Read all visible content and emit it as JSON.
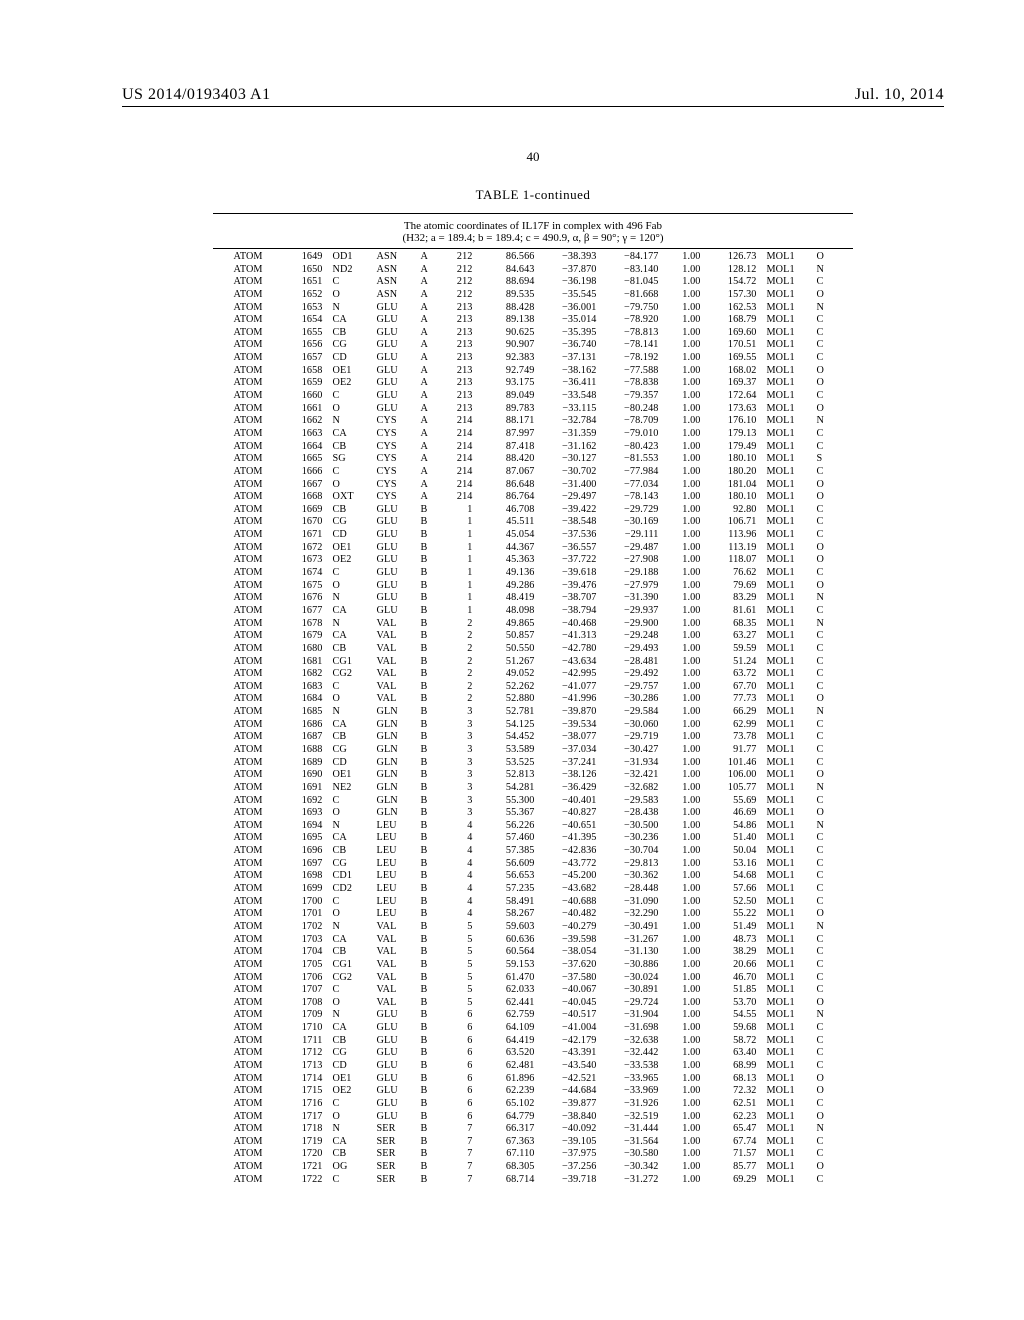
{
  "header": {
    "publication_no": "US 2014/0193403 A1",
    "publication_date": "Jul. 10, 2014",
    "page_number": "40"
  },
  "table": {
    "title": "TABLE 1-continued",
    "subtitle": "The atomic coordinates of IL17F in complex with 496 Fab\n(H32; a = 189.4; b = 189.4; c = 490.9, α, β = 90°; γ = 120°)",
    "cols": [
      "rec",
      "ser",
      "at",
      "res",
      "ch",
      "resn",
      "x",
      "y",
      "z",
      "oc",
      "bf",
      "seg",
      "el"
    ],
    "rows": [
      [
        "ATOM",
        "1649",
        "OD1",
        "ASN",
        "A",
        "212",
        "86.566",
        "−38.393",
        "−84.177",
        "1.00",
        "126.73",
        "MOL1",
        "O"
      ],
      [
        "ATOM",
        "1650",
        "ND2",
        "ASN",
        "A",
        "212",
        "84.643",
        "−37.870",
        "−83.140",
        "1.00",
        "128.12",
        "MOL1",
        "N"
      ],
      [
        "ATOM",
        "1651",
        "C",
        "ASN",
        "A",
        "212",
        "88.694",
        "−36.198",
        "−81.045",
        "1.00",
        "154.72",
        "MOL1",
        "C"
      ],
      [
        "ATOM",
        "1652",
        "O",
        "ASN",
        "A",
        "212",
        "89.535",
        "−35.545",
        "−81.668",
        "1.00",
        "157.30",
        "MOL1",
        "O"
      ],
      [
        "ATOM",
        "1653",
        "N",
        "GLU",
        "A",
        "213",
        "88.428",
        "−36.001",
        "−79.750",
        "1.00",
        "162.53",
        "MOL1",
        "N"
      ],
      [
        "ATOM",
        "1654",
        "CA",
        "GLU",
        "A",
        "213",
        "89.138",
        "−35.014",
        "−78.920",
        "1.00",
        "168.79",
        "MOL1",
        "C"
      ],
      [
        "ATOM",
        "1655",
        "CB",
        "GLU",
        "A",
        "213",
        "90.625",
        "−35.395",
        "−78.813",
        "1.00",
        "169.60",
        "MOL1",
        "C"
      ],
      [
        "ATOM",
        "1656",
        "CG",
        "GLU",
        "A",
        "213",
        "90.907",
        "−36.740",
        "−78.141",
        "1.00",
        "170.51",
        "MOL1",
        "C"
      ],
      [
        "ATOM",
        "1657",
        "CD",
        "GLU",
        "A",
        "213",
        "92.383",
        "−37.131",
        "−78.192",
        "1.00",
        "169.55",
        "MOL1",
        "C"
      ],
      [
        "ATOM",
        "1658",
        "OE1",
        "GLU",
        "A",
        "213",
        "92.749",
        "−38.162",
        "−77.588",
        "1.00",
        "168.02",
        "MOL1",
        "O"
      ],
      [
        "ATOM",
        "1659",
        "OE2",
        "GLU",
        "A",
        "213",
        "93.175",
        "−36.411",
        "−78.838",
        "1.00",
        "169.37",
        "MOL1",
        "O"
      ],
      [
        "ATOM",
        "1660",
        "C",
        "GLU",
        "A",
        "213",
        "89.049",
        "−33.548",
        "−79.357",
        "1.00",
        "172.64",
        "MOL1",
        "C"
      ],
      [
        "ATOM",
        "1661",
        "O",
        "GLU",
        "A",
        "213",
        "89.783",
        "−33.115",
        "−80.248",
        "1.00",
        "173.63",
        "MOL1",
        "O"
      ],
      [
        "ATOM",
        "1662",
        "N",
        "CYS",
        "A",
        "214",
        "88.171",
        "−32.784",
        "−78.709",
        "1.00",
        "176.10",
        "MOL1",
        "N"
      ],
      [
        "ATOM",
        "1663",
        "CA",
        "CYS",
        "A",
        "214",
        "87.997",
        "−31.359",
        "−79.010",
        "1.00",
        "179.13",
        "MOL1",
        "C"
      ],
      [
        "ATOM",
        "1664",
        "CB",
        "CYS",
        "A",
        "214",
        "87.418",
        "−31.162",
        "−80.423",
        "1.00",
        "179.49",
        "MOL1",
        "C"
      ],
      [
        "ATOM",
        "1665",
        "SG",
        "CYS",
        "A",
        "214",
        "88.420",
        "−30.127",
        "−81.553",
        "1.00",
        "180.10",
        "MOL1",
        "S"
      ],
      [
        "ATOM",
        "1666",
        "C",
        "CYS",
        "A",
        "214",
        "87.067",
        "−30.702",
        "−77.984",
        "1.00",
        "180.20",
        "MOL1",
        "C"
      ],
      [
        "ATOM",
        "1667",
        "O",
        "CYS",
        "A",
        "214",
        "86.648",
        "−31.400",
        "−77.034",
        "1.00",
        "181.04",
        "MOL1",
        "O"
      ],
      [
        "ATOM",
        "1668",
        "OXT",
        "CYS",
        "A",
        "214",
        "86.764",
        "−29.497",
        "−78.143",
        "1.00",
        "180.10",
        "MOL1",
        "O"
      ],
      [
        "ATOM",
        "1669",
        "CB",
        "GLU",
        "B",
        "1",
        "46.708",
        "−39.422",
        "−29.729",
        "1.00",
        "92.80",
        "MOL1",
        "C"
      ],
      [
        "ATOM",
        "1670",
        "CG",
        "GLU",
        "B",
        "1",
        "45.511",
        "−38.548",
        "−30.169",
        "1.00",
        "106.71",
        "MOL1",
        "C"
      ],
      [
        "ATOM",
        "1671",
        "CD",
        "GLU",
        "B",
        "1",
        "45.054",
        "−37.536",
        "−29.111",
        "1.00",
        "113.96",
        "MOL1",
        "C"
      ],
      [
        "ATOM",
        "1672",
        "OE1",
        "GLU",
        "B",
        "1",
        "44.367",
        "−36.557",
        "−29.487",
        "1.00",
        "113.19",
        "MOL1",
        "O"
      ],
      [
        "ATOM",
        "1673",
        "OE2",
        "GLU",
        "B",
        "1",
        "45.363",
        "−37.722",
        "−27.908",
        "1.00",
        "118.07",
        "MOL1",
        "O"
      ],
      [
        "ATOM",
        "1674",
        "C",
        "GLU",
        "B",
        "1",
        "49.136",
        "−39.618",
        "−29.188",
        "1.00",
        "76.62",
        "MOL1",
        "C"
      ],
      [
        "ATOM",
        "1675",
        "O",
        "GLU",
        "B",
        "1",
        "49.286",
        "−39.476",
        "−27.979",
        "1.00",
        "79.69",
        "MOL1",
        "O"
      ],
      [
        "ATOM",
        "1676",
        "N",
        "GLU",
        "B",
        "1",
        "48.419",
        "−38.707",
        "−31.390",
        "1.00",
        "83.29",
        "MOL1",
        "N"
      ],
      [
        "ATOM",
        "1677",
        "CA",
        "GLU",
        "B",
        "1",
        "48.098",
        "−38.794",
        "−29.937",
        "1.00",
        "81.61",
        "MOL1",
        "C"
      ],
      [
        "ATOM",
        "1678",
        "N",
        "VAL",
        "B",
        "2",
        "49.865",
        "−40.468",
        "−29.900",
        "1.00",
        "68.35",
        "MOL1",
        "N"
      ],
      [
        "ATOM",
        "1679",
        "CA",
        "VAL",
        "B",
        "2",
        "50.857",
        "−41.313",
        "−29.248",
        "1.00",
        "63.27",
        "MOL1",
        "C"
      ],
      [
        "ATOM",
        "1680",
        "CB",
        "VAL",
        "B",
        "2",
        "50.550",
        "−42.780",
        "−29.493",
        "1.00",
        "59.59",
        "MOL1",
        "C"
      ],
      [
        "ATOM",
        "1681",
        "CG1",
        "VAL",
        "B",
        "2",
        "51.267",
        "−43.634",
        "−28.481",
        "1.00",
        "51.24",
        "MOL1",
        "C"
      ],
      [
        "ATOM",
        "1682",
        "CG2",
        "VAL",
        "B",
        "2",
        "49.052",
        "−42.995",
        "−29.492",
        "1.00",
        "63.72",
        "MOL1",
        "C"
      ],
      [
        "ATOM",
        "1683",
        "C",
        "VAL",
        "B",
        "2",
        "52.262",
        "−41.077",
        "−29.757",
        "1.00",
        "67.70",
        "MOL1",
        "C"
      ],
      [
        "ATOM",
        "1684",
        "O",
        "VAL",
        "B",
        "2",
        "52.880",
        "−41.996",
        "−30.286",
        "1.00",
        "77.73",
        "MOL1",
        "O"
      ],
      [
        "ATOM",
        "1685",
        "N",
        "GLN",
        "B",
        "3",
        "52.781",
        "−39.870",
        "−29.584",
        "1.00",
        "66.29",
        "MOL1",
        "N"
      ],
      [
        "ATOM",
        "1686",
        "CA",
        "GLN",
        "B",
        "3",
        "54.125",
        "−39.534",
        "−30.060",
        "1.00",
        "62.99",
        "MOL1",
        "C"
      ],
      [
        "ATOM",
        "1687",
        "CB",
        "GLN",
        "B",
        "3",
        "54.452",
        "−38.077",
        "−29.719",
        "1.00",
        "73.78",
        "MOL1",
        "C"
      ],
      [
        "ATOM",
        "1688",
        "CG",
        "GLN",
        "B",
        "3",
        "53.589",
        "−37.034",
        "−30.427",
        "1.00",
        "91.77",
        "MOL1",
        "C"
      ],
      [
        "ATOM",
        "1689",
        "CD",
        "GLN",
        "B",
        "3",
        "53.525",
        "−37.241",
        "−31.934",
        "1.00",
        "101.46",
        "MOL1",
        "C"
      ],
      [
        "ATOM",
        "1690",
        "OE1",
        "GLN",
        "B",
        "3",
        "52.813",
        "−38.126",
        "−32.421",
        "1.00",
        "106.00",
        "MOL1",
        "O"
      ],
      [
        "ATOM",
        "1691",
        "NE2",
        "GLN",
        "B",
        "3",
        "54.281",
        "−36.429",
        "−32.682",
        "1.00",
        "105.77",
        "MOL1",
        "N"
      ],
      [
        "ATOM",
        "1692",
        "C",
        "GLN",
        "B",
        "3",
        "55.300",
        "−40.401",
        "−29.583",
        "1.00",
        "55.69",
        "MOL1",
        "C"
      ],
      [
        "ATOM",
        "1693",
        "O",
        "GLN",
        "B",
        "3",
        "55.367",
        "−40.827",
        "−28.438",
        "1.00",
        "46.69",
        "MOL1",
        "O"
      ],
      [
        "ATOM",
        "1694",
        "N",
        "LEU",
        "B",
        "4",
        "56.226",
        "−40.651",
        "−30.500",
        "1.00",
        "54.86",
        "MOL1",
        "N"
      ],
      [
        "ATOM",
        "1695",
        "CA",
        "LEU",
        "B",
        "4",
        "57.460",
        "−41.395",
        "−30.236",
        "1.00",
        "51.40",
        "MOL1",
        "C"
      ],
      [
        "ATOM",
        "1696",
        "CB",
        "LEU",
        "B",
        "4",
        "57.385",
        "−42.836",
        "−30.704",
        "1.00",
        "50.04",
        "MOL1",
        "C"
      ],
      [
        "ATOM",
        "1697",
        "CG",
        "LEU",
        "B",
        "4",
        "56.609",
        "−43.772",
        "−29.813",
        "1.00",
        "53.16",
        "MOL1",
        "C"
      ],
      [
        "ATOM",
        "1698",
        "CD1",
        "LEU",
        "B",
        "4",
        "56.653",
        "−45.200",
        "−30.362",
        "1.00",
        "54.68",
        "MOL1",
        "C"
      ],
      [
        "ATOM",
        "1699",
        "CD2",
        "LEU",
        "B",
        "4",
        "57.235",
        "−43.682",
        "−28.448",
        "1.00",
        "57.66",
        "MOL1",
        "C"
      ],
      [
        "ATOM",
        "1700",
        "C",
        "LEU",
        "B",
        "4",
        "58.491",
        "−40.688",
        "−31.090",
        "1.00",
        "52.50",
        "MOL1",
        "C"
      ],
      [
        "ATOM",
        "1701",
        "O",
        "LEU",
        "B",
        "4",
        "58.267",
        "−40.482",
        "−32.290",
        "1.00",
        "55.22",
        "MOL1",
        "O"
      ],
      [
        "ATOM",
        "1702",
        "N",
        "VAL",
        "B",
        "5",
        "59.603",
        "−40.279",
        "−30.491",
        "1.00",
        "51.49",
        "MOL1",
        "N"
      ],
      [
        "ATOM",
        "1703",
        "CA",
        "VAL",
        "B",
        "5",
        "60.636",
        "−39.598",
        "−31.267",
        "1.00",
        "48.73",
        "MOL1",
        "C"
      ],
      [
        "ATOM",
        "1704",
        "CB",
        "VAL",
        "B",
        "5",
        "60.564",
        "−38.054",
        "−31.130",
        "1.00",
        "38.29",
        "MOL1",
        "C"
      ],
      [
        "ATOM",
        "1705",
        "CG1",
        "VAL",
        "B",
        "5",
        "59.153",
        "−37.620",
        "−30.886",
        "1.00",
        "20.66",
        "MOL1",
        "C"
      ],
      [
        "ATOM",
        "1706",
        "CG2",
        "VAL",
        "B",
        "5",
        "61.470",
        "−37.580",
        "−30.024",
        "1.00",
        "46.70",
        "MOL1",
        "C"
      ],
      [
        "ATOM",
        "1707",
        "C",
        "VAL",
        "B",
        "5",
        "62.033",
        "−40.067",
        "−30.891",
        "1.00",
        "51.85",
        "MOL1",
        "C"
      ],
      [
        "ATOM",
        "1708",
        "O",
        "VAL",
        "B",
        "5",
        "62.441",
        "−40.045",
        "−29.724",
        "1.00",
        "53.70",
        "MOL1",
        "O"
      ],
      [
        "ATOM",
        "1709",
        "N",
        "GLU",
        "B",
        "6",
        "62.759",
        "−40.517",
        "−31.904",
        "1.00",
        "54.55",
        "MOL1",
        "N"
      ],
      [
        "ATOM",
        "1710",
        "CA",
        "GLU",
        "B",
        "6",
        "64.109",
        "−41.004",
        "−31.698",
        "1.00",
        "59.68",
        "MOL1",
        "C"
      ],
      [
        "ATOM",
        "1711",
        "CB",
        "GLU",
        "B",
        "6",
        "64.419",
        "−42.179",
        "−32.638",
        "1.00",
        "58.72",
        "MOL1",
        "C"
      ],
      [
        "ATOM",
        "1712",
        "CG",
        "GLU",
        "B",
        "6",
        "63.520",
        "−43.391",
        "−32.442",
        "1.00",
        "63.40",
        "MOL1",
        "C"
      ],
      [
        "ATOM",
        "1713",
        "CD",
        "GLU",
        "B",
        "6",
        "62.481",
        "−43.540",
        "−33.538",
        "1.00",
        "68.99",
        "MOL1",
        "C"
      ],
      [
        "ATOM",
        "1714",
        "OE1",
        "GLU",
        "B",
        "6",
        "61.896",
        "−42.521",
        "−33.965",
        "1.00",
        "68.13",
        "MOL1",
        "O"
      ],
      [
        "ATOM",
        "1715",
        "OE2",
        "GLU",
        "B",
        "6",
        "62.239",
        "−44.684",
        "−33.969",
        "1.00",
        "72.32",
        "MOL1",
        "O"
      ],
      [
        "ATOM",
        "1716",
        "C",
        "GLU",
        "B",
        "6",
        "65.102",
        "−39.877",
        "−31.926",
        "1.00",
        "62.51",
        "MOL1",
        "C"
      ],
      [
        "ATOM",
        "1717",
        "O",
        "GLU",
        "B",
        "6",
        "64.779",
        "−38.840",
        "−32.519",
        "1.00",
        "62.23",
        "MOL1",
        "O"
      ],
      [
        "ATOM",
        "1718",
        "N",
        "SER",
        "B",
        "7",
        "66.317",
        "−40.092",
        "−31.444",
        "1.00",
        "65.47",
        "MOL1",
        "N"
      ],
      [
        "ATOM",
        "1719",
        "CA",
        "SER",
        "B",
        "7",
        "67.363",
        "−39.105",
        "−31.564",
        "1.00",
        "67.74",
        "MOL1",
        "C"
      ],
      [
        "ATOM",
        "1720",
        "CB",
        "SER",
        "B",
        "7",
        "67.110",
        "−37.975",
        "−30.580",
        "1.00",
        "71.57",
        "MOL1",
        "C"
      ],
      [
        "ATOM",
        "1721",
        "OG",
        "SER",
        "B",
        "7",
        "68.305",
        "−37.256",
        "−30.342",
        "1.00",
        "85.77",
        "MOL1",
        "O"
      ],
      [
        "ATOM",
        "1722",
        "C",
        "SER",
        "B",
        "7",
        "68.714",
        "−39.718",
        "−31.272",
        "1.00",
        "69.29",
        "MOL1",
        "C"
      ]
    ]
  }
}
